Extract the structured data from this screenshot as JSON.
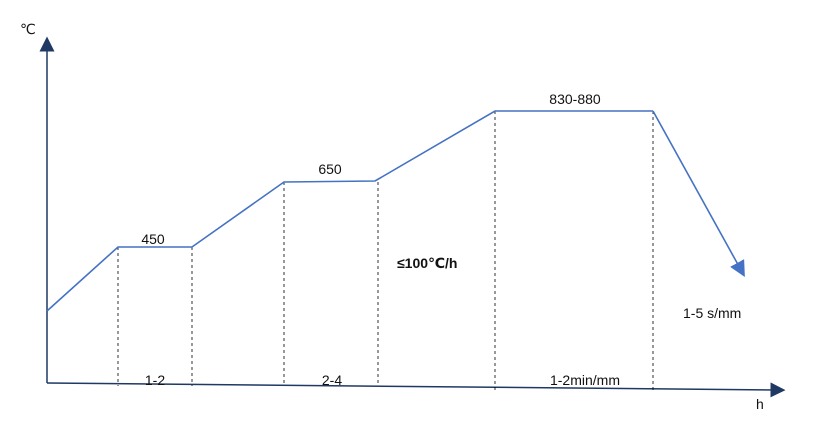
{
  "chart_data": {
    "type": "line",
    "ylabel": "℃",
    "xlabel": "h",
    "series": [
      {
        "values": [
          {
            "stage": "heat",
            "temp": 450
          },
          {
            "stage": "hold",
            "temp": 450,
            "duration": "1-2"
          },
          {
            "stage": "heat",
            "temp": 650
          },
          {
            "stage": "hold",
            "temp": 650,
            "duration": "2-4"
          },
          {
            "stage": "heat",
            "temp": "830-880",
            "rate": "≤100℃/h"
          },
          {
            "stage": "hold",
            "temp": "830-880",
            "duration": "1-2min/mm"
          },
          {
            "stage": "cool",
            "rate": "1-5 s/mm"
          }
        ]
      }
    ],
    "temp_labels": {
      "t1": "450",
      "t2": "650",
      "t3": "830-880"
    },
    "duration_labels": {
      "d1": "1-2",
      "d2": "2-4",
      "d3": "1-2min/mm"
    },
    "rate_labels": {
      "heating": "≤100℃/h",
      "cooling": "1-5 s/mm"
    },
    "colors": {
      "line": "#4472C4",
      "axis": "#1f3864",
      "guide": "#000000"
    }
  }
}
